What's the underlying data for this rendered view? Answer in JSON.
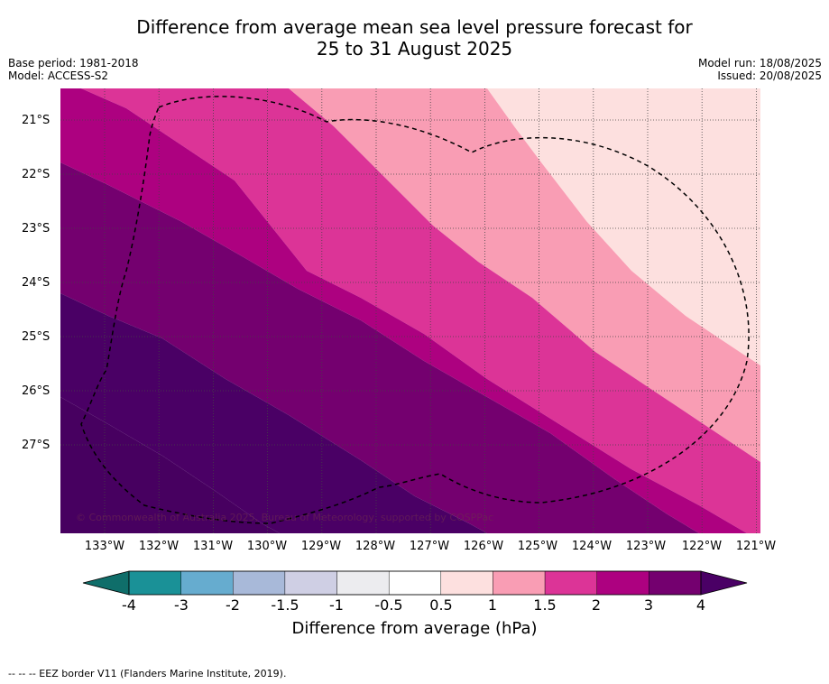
{
  "title_line1": "Difference from average mean sea level pressure forecast for",
  "title_line2": "25 to 31 August 2025",
  "base_period": "Base period: 1981-2018",
  "model": "Model: ACCESS-S2",
  "model_run": "Model run: 18/08/2025",
  "issued": "Issued: 20/08/2025",
  "latitudes": [
    "21°S",
    "22°S",
    "23°S",
    "24°S",
    "25°S",
    "26°S",
    "27°S"
  ],
  "longitudes": [
    "133°W",
    "132°W",
    "131°W",
    "130°W",
    "129°W",
    "128°W",
    "127°W",
    "126°W",
    "125°W",
    "124°W",
    "123°W",
    "122°W",
    "121°W"
  ],
  "copyright": "© Commonwealth of Australia 2025, Bureau of Meteorology, supported by COSPPac",
  "colorbar": {
    "ticks": [
      "-4",
      "-3",
      "-2",
      "-1.5",
      "-1",
      "-0.5",
      "0.5",
      "1",
      "1.5",
      "2",
      "3",
      "4"
    ],
    "colors": [
      "#0f6e6a",
      "#1a9197",
      "#66accf",
      "#a8b9d9",
      "#cfcfe4",
      "#ececef",
      "#ffffff",
      "#fde0df",
      "#f99db4",
      "#dc3497",
      "#ad0180",
      "#74006f",
      "#4a0065"
    ],
    "label": "Difference from average (hPa)"
  },
  "contour_colors": {
    "ge_0_5": "#fde0df",
    "ge_1": "#f99db4",
    "ge_1_5": "#dc3497",
    "ge_2": "#ad0180",
    "ge_3": "#74006f",
    "ge_4": "#4a0065"
  },
  "footnote": "--  --  -- EEZ border V11 (Flanders Marine Institute, 2019)."
}
